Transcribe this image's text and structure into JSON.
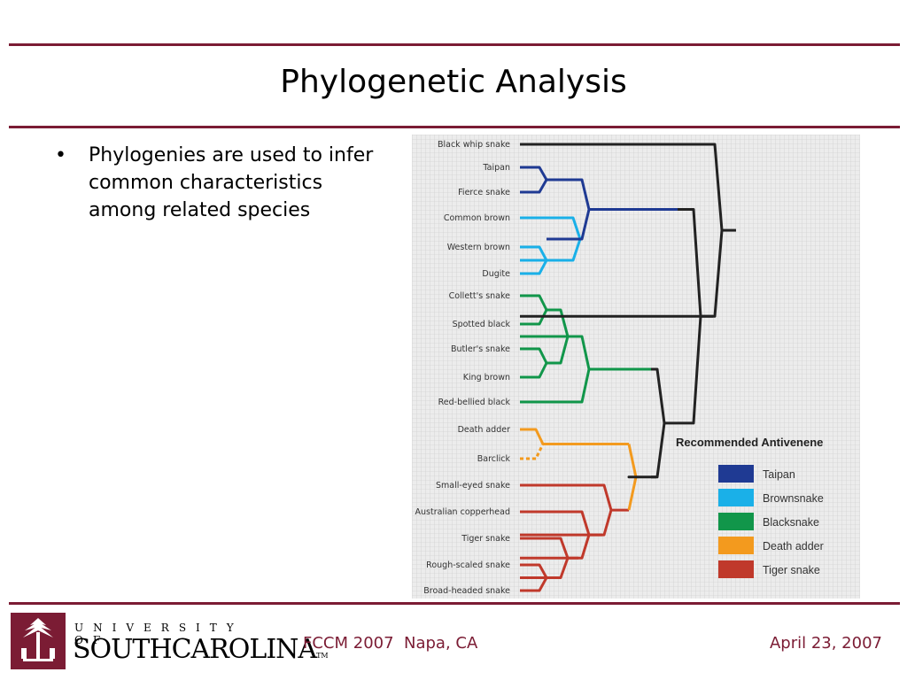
{
  "slide": {
    "title": "Phylogenetic Analysis",
    "bullets": [
      "Phylogenies are used to infer common characteristics among related species"
    ],
    "footer": {
      "university_line1": "UNIVERSITY OF",
      "university_line2": "SOUTHCAROLINA",
      "trademark": "TM",
      "conference": "FCCM 2007  Napa, CA",
      "date": "April 23, 2007"
    }
  },
  "colors": {
    "accent": "#7b1c34",
    "taipan": "#1f3a93",
    "brownsnake": "#1ab0e8",
    "blacksnake": "#11964a",
    "death_adder": "#f39a1e",
    "tiger_snake": "#c0392b",
    "outgroup": "#222222"
  },
  "tree": {
    "species": [
      {
        "name": "Black whip snake",
        "group": "outgroup"
      },
      {
        "name": "Taipan",
        "group": "taipan"
      },
      {
        "name": "Fierce snake",
        "group": "taipan"
      },
      {
        "name": "Common brown",
        "group": "brownsnake"
      },
      {
        "name": "Western brown",
        "group": "brownsnake"
      },
      {
        "name": "Dugite",
        "group": "brownsnake"
      },
      {
        "name": "Collett's snake",
        "group": "blacksnake"
      },
      {
        "name": "Spotted black",
        "group": "blacksnake"
      },
      {
        "name": "Butler's snake",
        "group": "blacksnake"
      },
      {
        "name": "King brown",
        "group": "blacksnake"
      },
      {
        "name": "Red-bellied black",
        "group": "blacksnake"
      },
      {
        "name": "Death adder",
        "group": "death_adder"
      },
      {
        "name": "Barclick",
        "group": "death_adder"
      },
      {
        "name": "Small-eyed snake",
        "group": "tiger_snake"
      },
      {
        "name": "Australian copperhead",
        "group": "tiger_snake"
      },
      {
        "name": "Tiger snake",
        "group": "tiger_snake"
      },
      {
        "name": "Rough-scaled snake",
        "group": "tiger_snake"
      },
      {
        "name": "Broad-headed snake",
        "group": "tiger_snake"
      }
    ],
    "legend": {
      "title": "Recommended Antivenene",
      "items": [
        {
          "label": "Taipan",
          "group": "taipan"
        },
        {
          "label": "Brownsnake",
          "group": "brownsnake"
        },
        {
          "label": "Blacksnake",
          "group": "blacksnake"
        },
        {
          "label": "Death adder",
          "group": "death_adder"
        },
        {
          "label": "Tiger snake",
          "group": "tiger_snake"
        }
      ]
    }
  }
}
